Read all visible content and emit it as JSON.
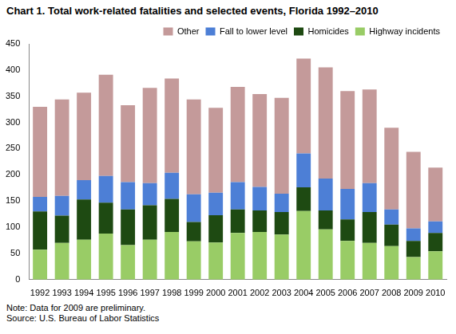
{
  "chart_data": {
    "type": "bar",
    "title": "Chart 1. Total work-related fatalities and selected events, Florida 1992–2010",
    "categories": [
      "1992",
      "1993",
      "1994",
      "1995",
      "1996",
      "1997",
      "1998",
      "1999",
      "2000",
      "2001",
      "2002",
      "2003",
      "2004",
      "2005",
      "2006",
      "2007",
      "2008",
      "2009",
      "2010"
    ],
    "series": [
      {
        "name": "Highway incidents",
        "color": "#99cc66",
        "values": [
          57,
          70,
          76,
          88,
          66,
          76,
          91,
          73,
          71,
          89,
          91,
          86,
          131,
          96,
          74,
          70,
          64,
          43,
          54
        ]
      },
      {
        "name": "Homicides",
        "color": "#1e4a12",
        "values": [
          73,
          52,
          77,
          59,
          68,
          66,
          63,
          37,
          52,
          45,
          41,
          43,
          45,
          36,
          41,
          59,
          41,
          31,
          35
        ]
      },
      {
        "name": "Fall to lower level",
        "color": "#4d7fd6",
        "values": [
          28,
          38,
          37,
          51,
          52,
          42,
          50,
          53,
          43,
          52,
          45,
          35,
          65,
          61,
          58,
          55,
          29,
          24,
          22
        ]
      },
      {
        "name": "Other",
        "color": "#c49a9a",
        "values": [
          172,
          184,
          167,
          193,
          147,
          182,
          180,
          181,
          162,
          182,
          177,
          183,
          181,
          212,
          187,
          179,
          156,
          146,
          103
        ]
      }
    ],
    "ylim": [
      0,
      450
    ],
    "yticks": [
      0,
      50,
      100,
      150,
      200,
      250,
      300,
      350,
      400,
      450
    ],
    "stacked": true,
    "grid": false,
    "legend": "top",
    "annotations": [
      "Note: Data for 2009 are preliminary.",
      "Source: U.S. Bureau of Labor Statistics"
    ]
  }
}
